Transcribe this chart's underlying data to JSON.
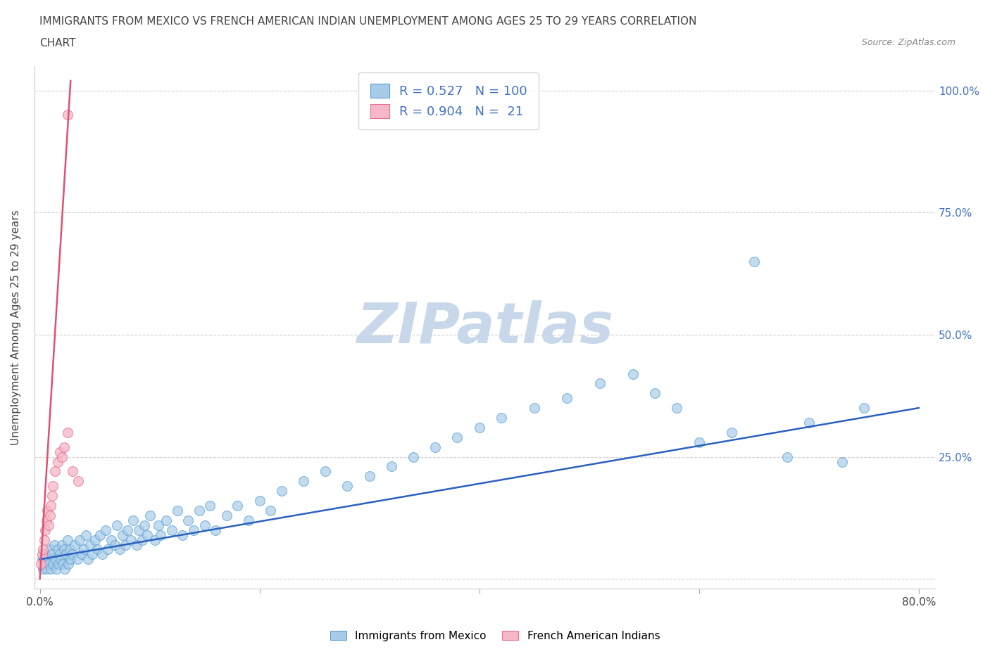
{
  "title_line1": "IMMIGRANTS FROM MEXICO VS FRENCH AMERICAN INDIAN UNEMPLOYMENT AMONG AGES 25 TO 29 YEARS CORRELATION",
  "title_line2": "CHART",
  "source": "Source: ZipAtlas.com",
  "ylabel": "Unemployment Among Ages 25 to 29 years",
  "xlim": [
    -0.005,
    0.815
  ],
  "ylim": [
    -0.02,
    1.05
  ],
  "xticks": [
    0.0,
    0.2,
    0.4,
    0.6,
    0.8
  ],
  "xticklabels": [
    "0.0%",
    "",
    "",
    "",
    "80.0%"
  ],
  "yticks": [
    0.0,
    0.25,
    0.5,
    0.75,
    1.0
  ],
  "ytick_labels_right": [
    "",
    "25.0%",
    "50.0%",
    "75.0%",
    "100.0%"
  ],
  "blue_face_color": "#A8CCE8",
  "blue_edge_color": "#5A9FD4",
  "pink_face_color": "#F5B8C8",
  "pink_edge_color": "#E87090",
  "blue_line_color": "#2B60C0",
  "pink_line_color": "#E05070",
  "legend_R1": "0.527",
  "legend_N1": "100",
  "legend_R2": "0.904",
  "legend_N2": "21",
  "legend_text_color": "#4472c4",
  "watermark": "ZIPatlas",
  "watermark_color": "#C8D8EA",
  "title_color": "#444444",
  "source_color": "#888888",
  "ylabel_color": "#444444",
  "grid_color": "#cccccc",
  "right_tick_color": "#4472c4",
  "blue_x": [
    0.002,
    0.003,
    0.004,
    0.005,
    0.006,
    0.007,
    0.008,
    0.009,
    0.01,
    0.011,
    0.012,
    0.013,
    0.014,
    0.015,
    0.016,
    0.017,
    0.018,
    0.019,
    0.02,
    0.021,
    0.022,
    0.023,
    0.024,
    0.025,
    0.026,
    0.027,
    0.028,
    0.03,
    0.032,
    0.034,
    0.036,
    0.038,
    0.04,
    0.042,
    0.044,
    0.046,
    0.048,
    0.05,
    0.052,
    0.055,
    0.057,
    0.06,
    0.062,
    0.065,
    0.068,
    0.07,
    0.073,
    0.075,
    0.078,
    0.08,
    0.083,
    0.085,
    0.088,
    0.09,
    0.093,
    0.095,
    0.098,
    0.1,
    0.105,
    0.108,
    0.11,
    0.115,
    0.12,
    0.125,
    0.13,
    0.135,
    0.14,
    0.145,
    0.15,
    0.155,
    0.16,
    0.17,
    0.18,
    0.19,
    0.2,
    0.21,
    0.22,
    0.24,
    0.26,
    0.28,
    0.3,
    0.32,
    0.34,
    0.36,
    0.38,
    0.4,
    0.42,
    0.45,
    0.48,
    0.51,
    0.54,
    0.56,
    0.58,
    0.6,
    0.63,
    0.65,
    0.68,
    0.7,
    0.73,
    0.75
  ],
  "blue_y": [
    0.04,
    0.02,
    0.03,
    0.05,
    0.02,
    0.04,
    0.03,
    0.06,
    0.02,
    0.05,
    0.03,
    0.07,
    0.04,
    0.02,
    0.06,
    0.03,
    0.05,
    0.04,
    0.07,
    0.03,
    0.06,
    0.02,
    0.05,
    0.08,
    0.03,
    0.06,
    0.04,
    0.05,
    0.07,
    0.04,
    0.08,
    0.05,
    0.06,
    0.09,
    0.04,
    0.07,
    0.05,
    0.08,
    0.06,
    0.09,
    0.05,
    0.1,
    0.06,
    0.08,
    0.07,
    0.11,
    0.06,
    0.09,
    0.07,
    0.1,
    0.08,
    0.12,
    0.07,
    0.1,
    0.08,
    0.11,
    0.09,
    0.13,
    0.08,
    0.11,
    0.09,
    0.12,
    0.1,
    0.14,
    0.09,
    0.12,
    0.1,
    0.14,
    0.11,
    0.15,
    0.1,
    0.13,
    0.15,
    0.12,
    0.16,
    0.14,
    0.18,
    0.2,
    0.22,
    0.19,
    0.21,
    0.23,
    0.25,
    0.27,
    0.29,
    0.31,
    0.33,
    0.35,
    0.37,
    0.4,
    0.42,
    0.38,
    0.35,
    0.28,
    0.3,
    0.65,
    0.25,
    0.32,
    0.24,
    0.35
  ],
  "pink_x": [
    0.001,
    0.002,
    0.003,
    0.004,
    0.005,
    0.006,
    0.007,
    0.008,
    0.009,
    0.01,
    0.011,
    0.012,
    0.014,
    0.016,
    0.018,
    0.02,
    0.022,
    0.025,
    0.03,
    0.035,
    0.025
  ],
  "pink_y": [
    0.03,
    0.05,
    0.06,
    0.08,
    0.1,
    0.12,
    0.14,
    0.11,
    0.13,
    0.15,
    0.17,
    0.19,
    0.22,
    0.24,
    0.26,
    0.25,
    0.27,
    0.3,
    0.22,
    0.2,
    0.95
  ],
  "pink_line_x": [
    0.0,
    0.028
  ],
  "pink_line_y": [
    0.0,
    1.02
  ],
  "blue_line_x": [
    0.0,
    0.8
  ],
  "blue_line_y": [
    0.04,
    0.35
  ]
}
